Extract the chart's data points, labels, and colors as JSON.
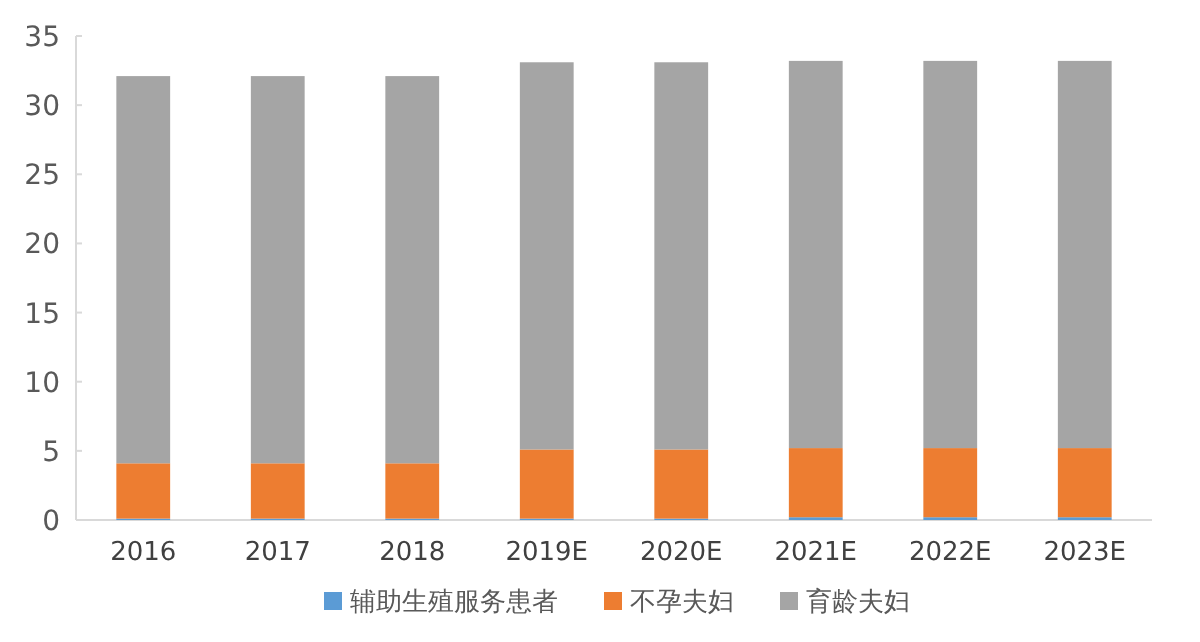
{
  "chart_data": {
    "type": "bar",
    "stacked": true,
    "categories": [
      "2016",
      "2017",
      "2018",
      "2019E",
      "2020E",
      "2021E",
      "2022E",
      "2023E"
    ],
    "series": [
      {
        "name": "辅助生殖服务患者",
        "color": "#5b9bd5",
        "values": [
          0.1,
          0.1,
          0.1,
          0.1,
          0.1,
          0.2,
          0.2,
          0.2
        ]
      },
      {
        "name": "不孕夫妇",
        "color": "#ed7d31",
        "values": [
          4.0,
          4.0,
          4.0,
          5.0,
          5.0,
          5.0,
          5.0,
          5.0
        ]
      },
      {
        "name": "育龄夫妇",
        "color": "#a5a5a5",
        "values": [
          28.0,
          28.0,
          28.0,
          28.0,
          28.0,
          28.0,
          28.0,
          28.0
        ]
      }
    ],
    "ylim": [
      0,
      35
    ],
    "yticks": [
      0,
      5,
      10,
      15,
      20,
      25,
      30,
      35
    ],
    "grid": false,
    "legend": "bottom"
  }
}
